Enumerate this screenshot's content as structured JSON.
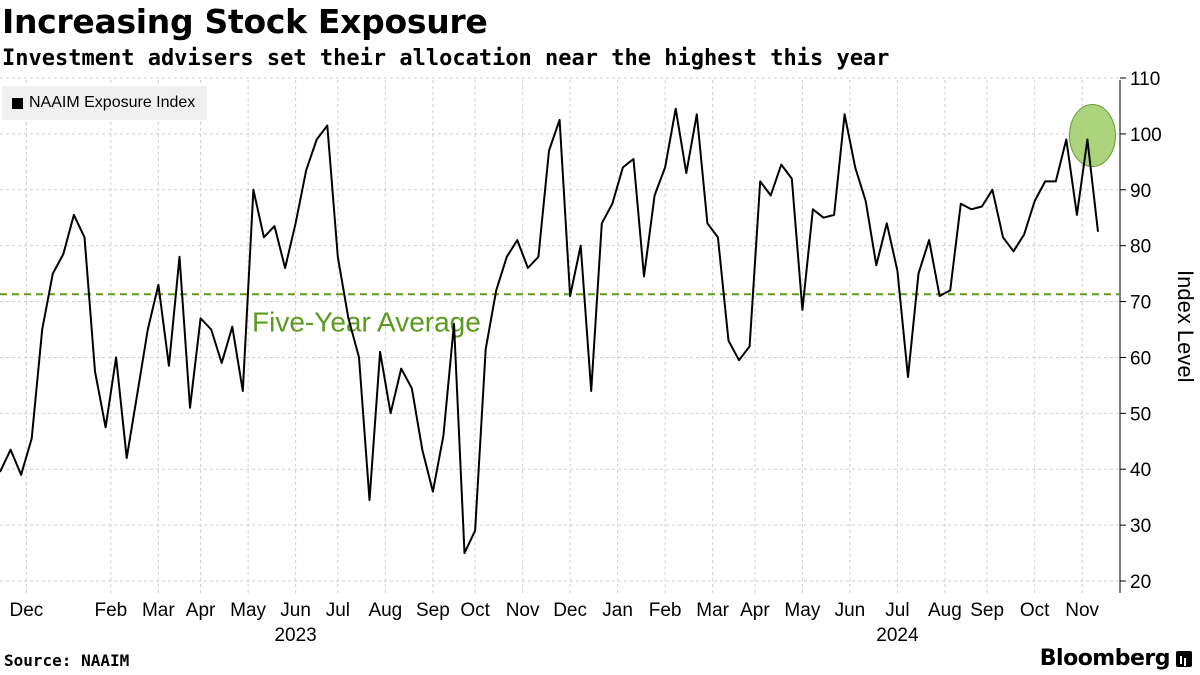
{
  "title": "Increasing Stock Exposure",
  "subtitle": "Investment advisers set their allocation near the highest this year",
  "source": "Source: NAAIM",
  "brand": "Bloomberg",
  "chart_data": {
    "type": "line",
    "series": [
      {
        "name": "NAAIM Exposure Index",
        "color": "#000000",
        "values": [
          39.5,
          43.5,
          39,
          45.5,
          65,
          75,
          78.5,
          85.5,
          81.5,
          57.5,
          47.5,
          60,
          42,
          53.5,
          65,
          73,
          58.5,
          78,
          51,
          67,
          65,
          59,
          65.5,
          54,
          90,
          81.5,
          83.5,
          76,
          84,
          93.5,
          99,
          101.5,
          78,
          67,
          60,
          34.5,
          61,
          50,
          58,
          54.5,
          43.5,
          36,
          46,
          66,
          25,
          29,
          61.5,
          72,
          78,
          81,
          76,
          78,
          97,
          102.5,
          71,
          80,
          54,
          84,
          87.5,
          94,
          95.5,
          74.5,
          89,
          94,
          104.5,
          93,
          103.5,
          84,
          81.5,
          63,
          59.5,
          62,
          91.5,
          89,
          94.5,
          92,
          68.5,
          86.5,
          85,
          85.5,
          103.5,
          94,
          88,
          76.5,
          84,
          75.5,
          56.5,
          75,
          81,
          71,
          72,
          87.5,
          86.5,
          87,
          90,
          81.5,
          79,
          82,
          88,
          91.5,
          91.5,
          99,
          85.5,
          99,
          82.5
        ]
      }
    ],
    "average": {
      "label": "Five-Year Average",
      "value": 71.3,
      "color": "#5a9a1c"
    },
    "highlight": {
      "index": 103,
      "color": "#9ccc65"
    },
    "ylim": [
      20,
      110
    ],
    "yticks": [
      20,
      30,
      40,
      50,
      60,
      70,
      80,
      90,
      100,
      110
    ],
    "ylabel": "Index Level",
    "xlabel": "",
    "month_labels": [
      {
        "label": "Dec",
        "week": 2.5
      },
      {
        "label": "Feb",
        "week": 10.5
      },
      {
        "label": "Mar",
        "week": 15
      },
      {
        "label": "Apr",
        "week": 19
      },
      {
        "label": "May",
        "week": 23.5
      },
      {
        "label": "Jun",
        "week": 28
      },
      {
        "label": "Jul",
        "week": 32
      },
      {
        "label": "Aug",
        "week": 36.5
      },
      {
        "label": "Sep",
        "week": 41
      },
      {
        "label": "Oct",
        "week": 45
      },
      {
        "label": "Nov",
        "week": 49.5
      },
      {
        "label": "Dec",
        "week": 54
      },
      {
        "label": "Jan",
        "week": 58.5
      },
      {
        "label": "Feb",
        "week": 63
      },
      {
        "label": "Mar",
        "week": 67.5
      },
      {
        "label": "Apr",
        "week": 71.5
      },
      {
        "label": "May",
        "week": 76
      },
      {
        "label": "Jun",
        "week": 80.5
      },
      {
        "label": "Jul",
        "week": 85
      },
      {
        "label": "Aug",
        "week": 89.5
      },
      {
        "label": "Sep",
        "week": 93.5
      },
      {
        "label": "Oct",
        "week": 98
      },
      {
        "label": "Nov",
        "week": 102.5
      }
    ],
    "year_labels": [
      {
        "label": "2023",
        "week": 28
      },
      {
        "label": "2024",
        "week": 85
      }
    ],
    "grid": true,
    "legend_position": "top-left"
  }
}
